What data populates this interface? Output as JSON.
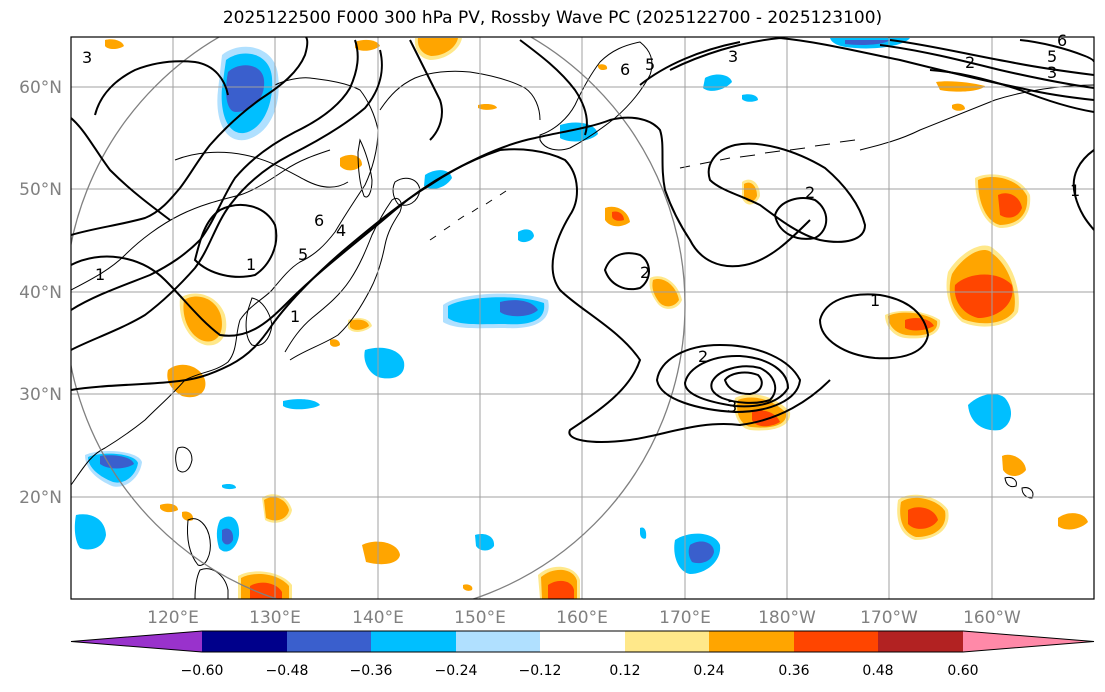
{
  "title": "2025122500 F000 300 hPa PV, Rossby Wave PC (2025122700 - 2025123100)",
  "map": {
    "lon_ticks": [
      "120°E",
      "130°E",
      "140°E",
      "150°E",
      "160°E",
      "170°E",
      "180°W",
      "170°W",
      "160°W"
    ],
    "lat_ticks": [
      "20°N",
      "30°N",
      "40°N",
      "50°N",
      "60°N"
    ],
    "contour_labels": [
      "3",
      "6",
      "5",
      "2",
      "3",
      "1",
      "5",
      "4",
      "6",
      "1",
      "1",
      "2",
      "2",
      "2",
      "3",
      "1",
      "1",
      "5",
      "3",
      "6"
    ]
  },
  "colorbar": {
    "ticks": [
      "−0.60",
      "−0.48",
      "−0.36",
      "−0.24",
      "−0.12",
      "0.12",
      "0.24",
      "0.36",
      "0.48",
      "0.60"
    ],
    "colors": [
      "#9932cc",
      "#00008b",
      "#3a5fcd",
      "#00bfff",
      "#b0e0ff",
      "#ffffff",
      "#ffe88a",
      "#ffa500",
      "#ff4500",
      "#b22222",
      "#ff89a8"
    ]
  },
  "legend_colors": {
    "neg_dark": "#3a5fcd",
    "neg_mid": "#00bfff",
    "neg_light": "#b0e0ff",
    "pos_light": "#ffe88a",
    "pos_mid": "#ffa500",
    "pos_dark": "#ff4500"
  }
}
